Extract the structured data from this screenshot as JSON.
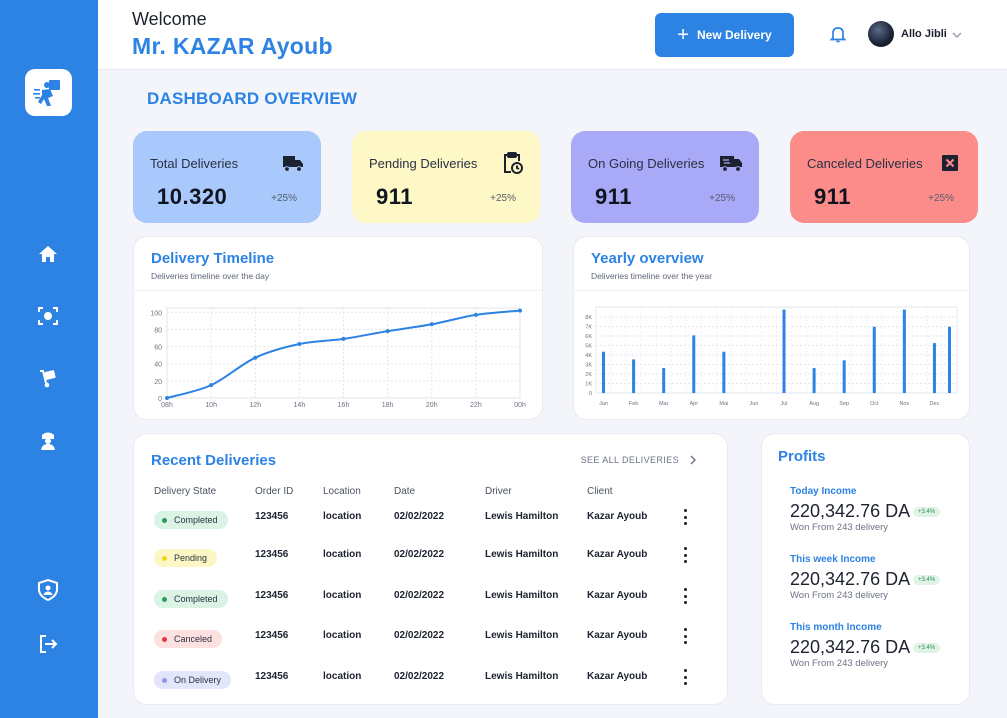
{
  "header": {
    "welcome": "Welcome",
    "user_title": "Mr. KAZAR Ayoub",
    "new_delivery_label": "New Delivery",
    "profile_name": "Allo Jibli"
  },
  "sidebar": {
    "items": [
      {
        "icon": "home-icon"
      },
      {
        "icon": "scan-face-icon"
      },
      {
        "icon": "hand-truck-icon"
      },
      {
        "icon": "driver-icon"
      },
      {
        "icon": "shield-user-icon"
      },
      {
        "icon": "logout-icon"
      }
    ]
  },
  "page": {
    "title": "DASHBOARD OVERVIEW"
  },
  "stats": [
    {
      "label": "Total Deliveries",
      "value": "10.320",
      "change": "+25%",
      "color": "#a9c8fb",
      "icon": "truck-icon"
    },
    {
      "label": "Pending Deliveries",
      "value": "911",
      "change": "+25%",
      "color": "#fdf8c6",
      "icon": "clipboard-clock-icon"
    },
    {
      "label": "On Going Deliveries",
      "value": "911",
      "change": "+25%",
      "color": "#a8a9f7",
      "icon": "moving-truck-icon"
    },
    {
      "label": "Canceled Deliveries",
      "value": "911",
      "change": "+25%",
      "color": "#fb8c8a",
      "icon": "cancel-box-icon"
    }
  ],
  "timeline": {
    "title": "Delivery Timeline",
    "subtitle": "Deliveries timeline over the day"
  },
  "yearly": {
    "title": "Yearly overview",
    "subtitle": "Deliveries timeline over the year"
  },
  "chart_data": [
    {
      "type": "line",
      "x": [
        "08h",
        "10h",
        "12h",
        "14h",
        "16h",
        "18h",
        "20h",
        "22h",
        "00h"
      ],
      "values": [
        0,
        15,
        47,
        63,
        69,
        78,
        86,
        97,
        102
      ],
      "yticks": [
        "0",
        "20",
        "40",
        "60",
        "80",
        "100"
      ],
      "ylim": [
        0,
        105
      ],
      "grid": true,
      "color": "#2d83e3"
    },
    {
      "type": "bar",
      "categories": [
        "Jan",
        "",
        "Feb",
        "",
        "Mar",
        "",
        "Apr",
        "",
        "Mai",
        "",
        "Jun",
        "",
        "Jul",
        "",
        "Aug",
        "",
        "Sep",
        "",
        "Oct",
        "",
        "Nov",
        "",
        "Dec",
        ""
      ],
      "values": [
        4800,
        0,
        3900,
        0,
        2900,
        0,
        6700,
        0,
        4800,
        0,
        0,
        0,
        9700,
        0,
        2900,
        0,
        3800,
        0,
        7700,
        0,
        9700,
        0,
        5800,
        7700
      ],
      "yticks": [
        "0",
        "1K",
        "2K",
        "3K",
        "4K",
        "5K",
        "6K",
        "7K",
        "8K"
      ],
      "ylim": [
        0,
        10000
      ],
      "grid": true,
      "color": "#2d83e3"
    }
  ],
  "recent": {
    "title": "Recent Deliveries",
    "see_all": "SEE ALL DELIVERIES",
    "columns": [
      "Delivery State",
      "Order ID",
      "Location",
      "Date",
      "Driver",
      "Client"
    ],
    "rows": [
      {
        "state": "Completed",
        "state_bg": "#dbf3e4",
        "dot": "#2c9a5b",
        "order": "123456",
        "location": "location",
        "date": "02/02/2022",
        "driver": "Lewis Hamilton",
        "client": "Kazar Ayoub"
      },
      {
        "state": "Pending",
        "state_bg": "#fdf7c6",
        "dot": "#f3d31c",
        "order": "123456",
        "location": "location",
        "date": "02/02/2022",
        "driver": "Lewis Hamilton",
        "client": "Kazar Ayoub"
      },
      {
        "state": "Completed",
        "state_bg": "#dbf3e4",
        "dot": "#2c9a5b",
        "order": "123456",
        "location": "location",
        "date": "02/02/2022",
        "driver": "Lewis Hamilton",
        "client": "Kazar Ayoub"
      },
      {
        "state": "Canceled",
        "state_bg": "#fde0e0",
        "dot": "#e53a3a",
        "order": "123456",
        "location": "location",
        "date": "02/02/2022",
        "driver": "Lewis Hamilton",
        "client": "Kazar Ayoub"
      },
      {
        "state": "On Delivery",
        "state_bg": "#e3e6fb",
        "dot": "#8f93f0",
        "order": "123456",
        "location": "location",
        "date": "02/02/2022",
        "driver": "Lewis Hamilton",
        "client": "Kazar Ayoub"
      }
    ]
  },
  "profits": {
    "title": "Profits",
    "items": [
      {
        "label": "Today Income",
        "value": "220,342.76 DA",
        "badge": "+3.4%",
        "note": "Won From 243 delivery"
      },
      {
        "label": "This week Income",
        "value": "220,342.76 DA",
        "badge": "+3.4%",
        "note": "Won From 243 delivery"
      },
      {
        "label": "This month Income",
        "value": "220,342.76 DA",
        "badge": "+3.4%",
        "note": "Won From 243 delivery"
      }
    ]
  }
}
